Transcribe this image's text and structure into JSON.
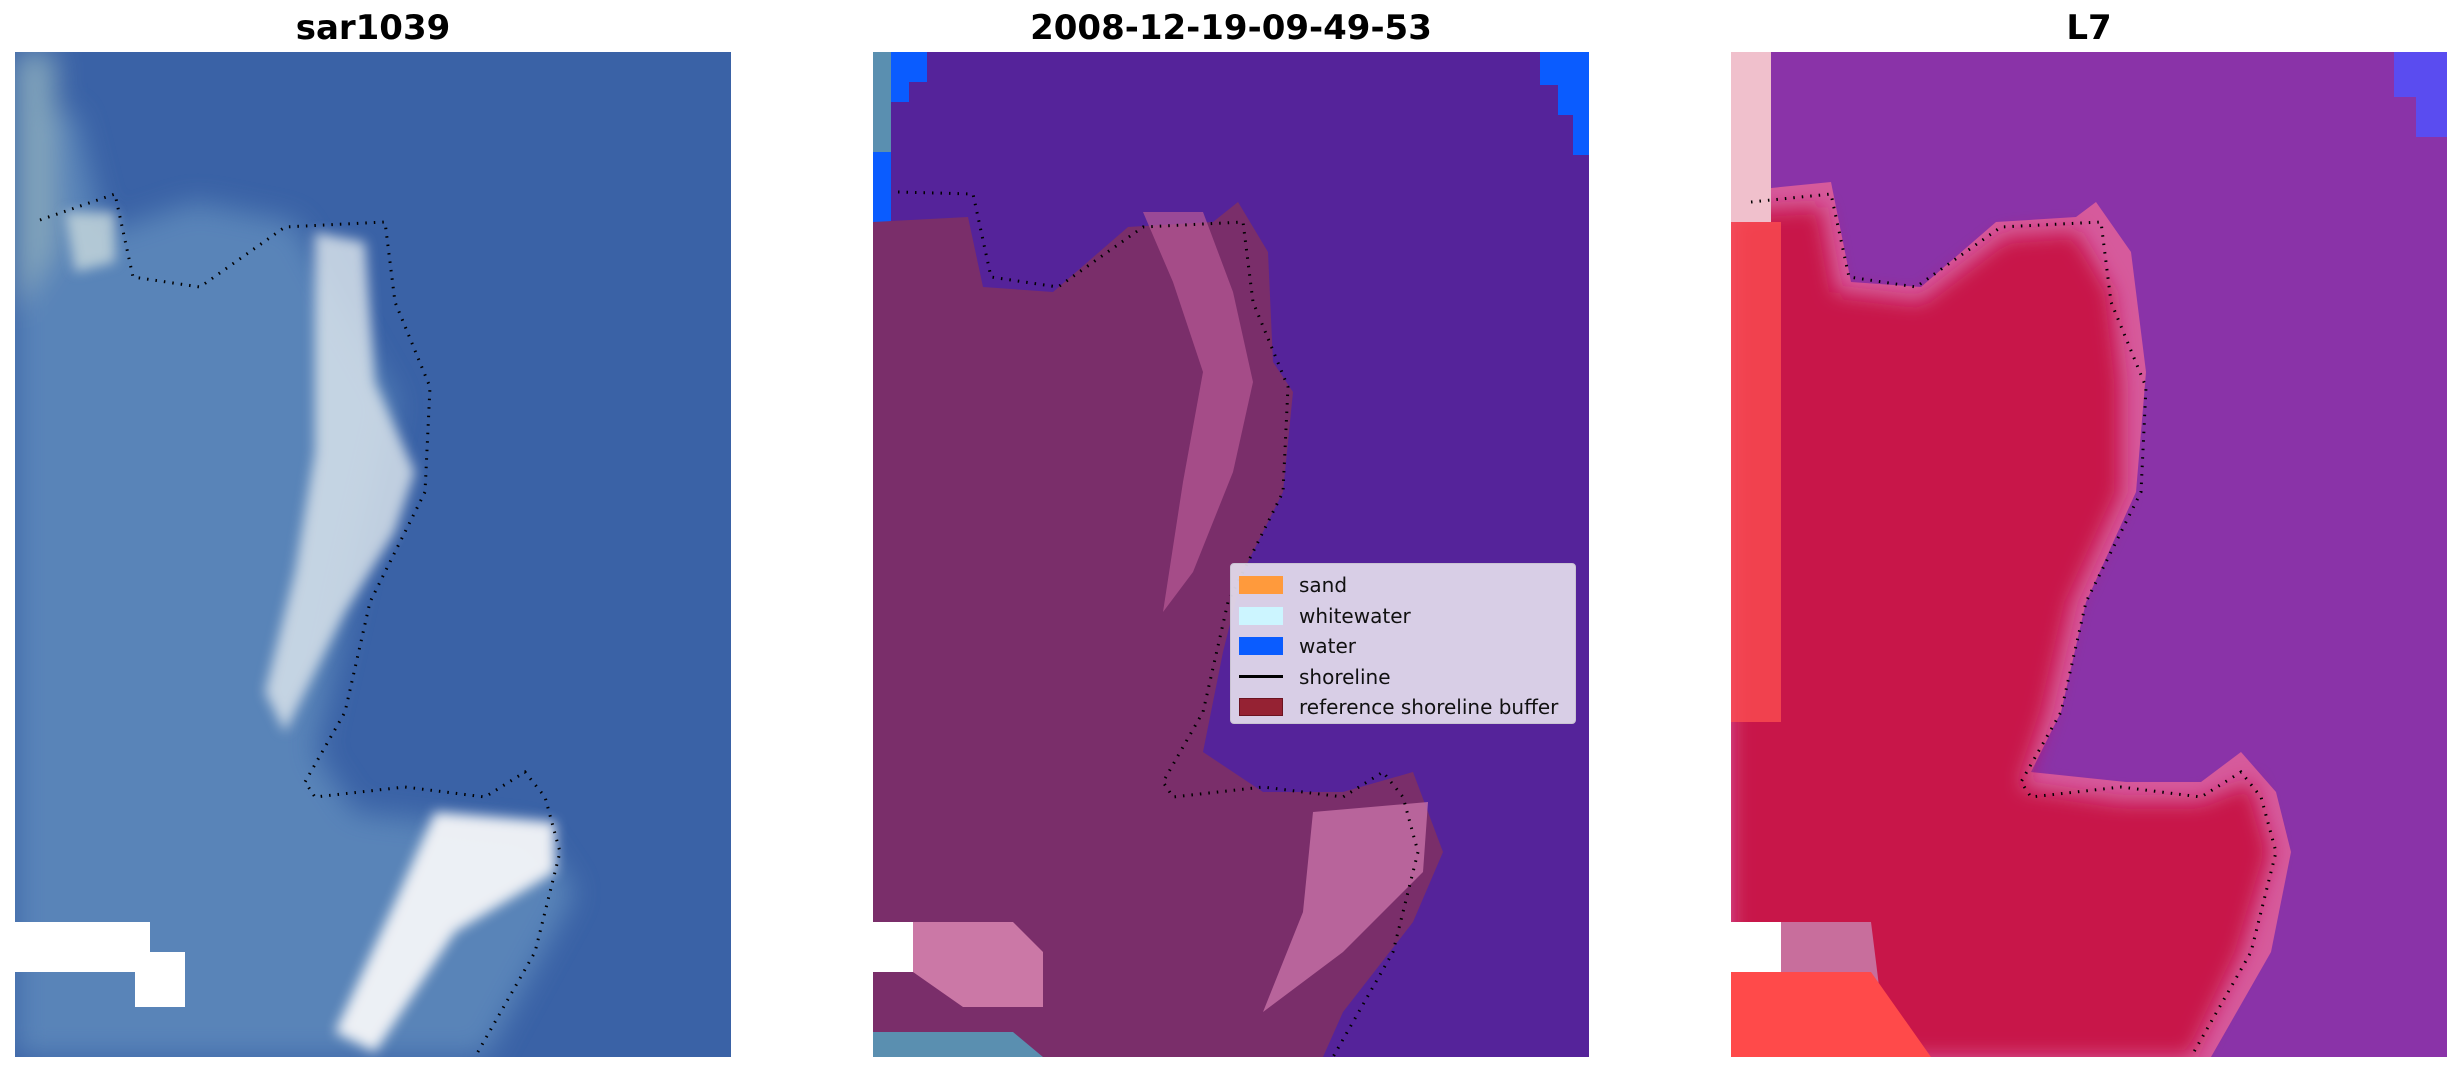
{
  "panels": [
    {
      "id": "rgb",
      "title": "sar1039"
    },
    {
      "id": "classified",
      "title": "2008-12-19-09-49-53"
    },
    {
      "id": "index",
      "title": "L7"
    }
  ],
  "legend": {
    "items": [
      {
        "label": "sand",
        "color": "#ff9a3c",
        "kind": "patch"
      },
      {
        "label": "whitewater",
        "color": "#ccf5ff",
        "kind": "patch"
      },
      {
        "label": "water",
        "color": "#0a5cff",
        "kind": "patch"
      },
      {
        "label": "shoreline",
        "color": "#000000",
        "kind": "line"
      },
      {
        "label": "reference shoreline buffer",
        "color": "#952233",
        "kind": "patch"
      }
    ]
  },
  "colors": {
    "ocean_rgb": "#3a62a6",
    "land_rgb": "#5d86b5",
    "surf": "#e9eef2",
    "classified_water": "#55239a",
    "buffer": "#7a2e6a",
    "buffer_light": "#b85a95",
    "index_water": "#8a33a8",
    "index_land": "#c8184a",
    "index_edge": "#d65a9c",
    "index_low": "#ff5050",
    "bright_blue": "#0a5cff",
    "shoreline": "#000000"
  }
}
